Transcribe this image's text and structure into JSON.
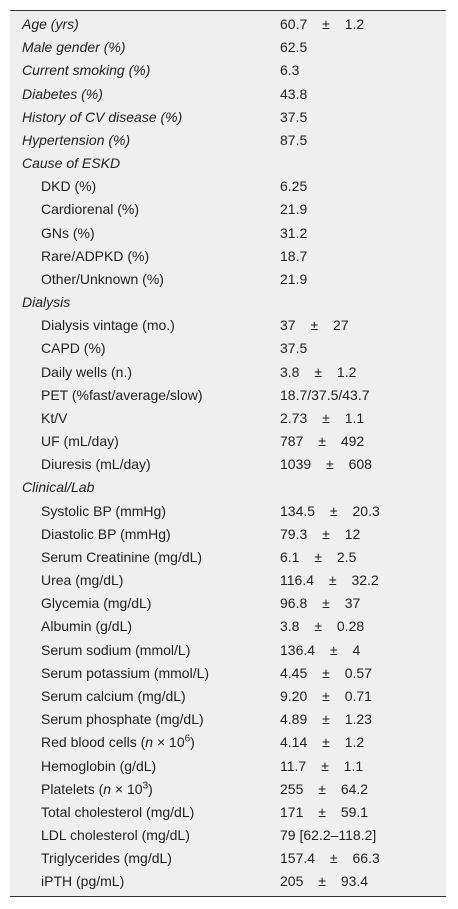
{
  "table": {
    "rows": [
      [
        "Age (yrs)",
        "60.7 ± 1.2"
      ],
      [
        "Male gender (%)",
        "62.5"
      ],
      [
        "Current smoking (%)",
        "6.3"
      ],
      [
        "Diabetes (%)",
        "43.8"
      ],
      [
        "History of CV disease (%)",
        "37.5"
      ],
      [
        "Hypertension (%)",
        "87.5"
      ]
    ],
    "sections": [
      {
        "title": "Cause of ESKD",
        "rows": [
          [
            "DKD (%)",
            "6.25"
          ],
          [
            "Cardiorenal (%)",
            "21.9"
          ],
          [
            "GNs (%)",
            "31.2"
          ],
          [
            "Rare/ADPKD (%)",
            "18.7"
          ],
          [
            "Other/Unknown (%)",
            "21.9"
          ]
        ]
      },
      {
        "title": "Dialysis",
        "rows": [
          [
            "Dialysis vintage (mo.)",
            "37 ± 27"
          ],
          [
            "CAPD (%)",
            "37.5"
          ],
          [
            "Daily wells (n.)",
            "3.8 ± 1.2"
          ],
          [
            "PET (%fast/average/slow)",
            "18.7/37.5/43.7"
          ],
          [
            "Kt/V",
            "2.73 ± 1.1"
          ],
          [
            "UF (mL/day)",
            "787 ± 492"
          ],
          [
            "Diuresis (mL/day)",
            "1039 ± 608"
          ]
        ]
      },
      {
        "title": "Clinical/Lab",
        "rows": [
          [
            "Systolic BP (mmHg)",
            "134.5 ± 20.3"
          ],
          [
            "Diastolic BP (mmHg)",
            "79.3 ± 12"
          ],
          [
            "Serum Creatinine (mg/dL)",
            "6.1 ± 2.5"
          ],
          [
            "Urea (mg/dL)",
            "116.4 ± 32.2"
          ],
          [
            "Glycemia (mg/dL)",
            "96.8 ± 37"
          ],
          [
            "Albumin (g/dL)",
            "3.8 ± 0.28"
          ],
          [
            "Serum sodium (mmol/L)",
            "136.4 ± 4"
          ],
          [
            "Serum potassium (mmol/L)",
            "4.45 ± 0.57"
          ],
          [
            "Serum calcium (mg/dL)",
            "9.20 ± 0.71"
          ],
          [
            "Serum phosphate (mg/dL)",
            "4.89 ± 1.23"
          ],
          [
            [
              "Red blood cells (",
              {
                "i": "n"
              },
              " × 10",
              {
                "sup": "6"
              },
              ")"
            ],
            "4.14 ± 1.2"
          ],
          [
            "Hemoglobin (g/dL)",
            "11.7 ± 1.1"
          ],
          [
            [
              "Platelets (",
              {
                "i": "n"
              },
              " × 10",
              {
                "sup": "3"
              },
              ")"
            ],
            "255 ± 64.2"
          ],
          [
            "Total cholesterol (mg/dL)",
            "171 ± 59.1"
          ],
          [
            "LDL cholesterol (mg/dL)",
            "79 [62.2–118.2]"
          ],
          [
            "Triglycerides (mg/dL)",
            "157.4 ± 66.3"
          ],
          [
            "iPTH (pg/mL)",
            "205 ± 93.4"
          ]
        ]
      }
    ]
  }
}
